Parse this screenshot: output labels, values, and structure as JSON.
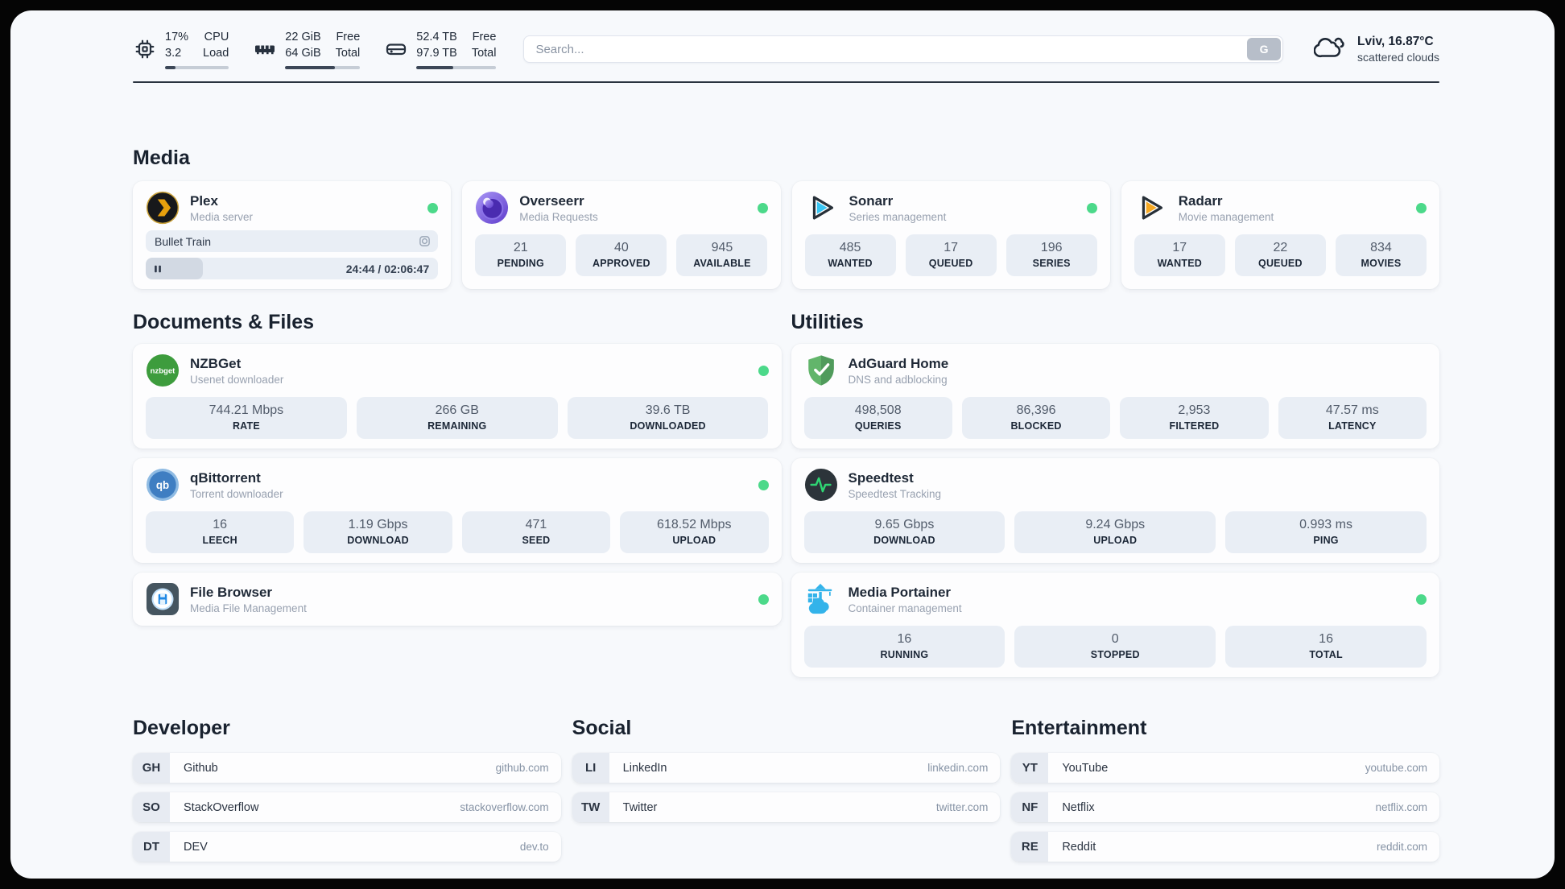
{
  "header": {
    "stats": [
      {
        "icon": "cpu-icon",
        "value_line1": "17%",
        "value_line2": "3.2",
        "label_line1": "CPU",
        "label_line2": "Load",
        "progress_pct": 17
      },
      {
        "icon": "memory-icon",
        "value_line1": "22 GiB",
        "value_line2": "64 GiB",
        "label_line1": "Free",
        "label_line2": "Total",
        "progress_pct": 66
      },
      {
        "icon": "storage-icon",
        "value_line1": "52.4 TB",
        "value_line2": "97.9 TB",
        "label_line1": "Free",
        "label_line2": "Total",
        "progress_pct": 46
      }
    ],
    "search": {
      "placeholder": "Search...",
      "button_label": "G"
    },
    "weather": {
      "location": "Lviv, 16.87°C",
      "condition": "scattered clouds"
    }
  },
  "media": {
    "heading": "Media",
    "plex": {
      "name": "Plex",
      "description": "Media server",
      "status": "online",
      "now_playing": "Bullet Train",
      "time_display": "24:44 / 02:06:47",
      "progress_pct": 19.5
    },
    "overseerr": {
      "name": "Overseerr",
      "description": "Media Requests",
      "status": "online",
      "stats": [
        {
          "value": "21",
          "label": "PENDING"
        },
        {
          "value": "40",
          "label": "APPROVED"
        },
        {
          "value": "945",
          "label": "AVAILABLE"
        }
      ]
    },
    "sonarr": {
      "name": "Sonarr",
      "description": "Series management",
      "status": "online",
      "stats": [
        {
          "value": "485",
          "label": "WANTED"
        },
        {
          "value": "17",
          "label": "QUEUED"
        },
        {
          "value": "196",
          "label": "SERIES"
        }
      ]
    },
    "radarr": {
      "name": "Radarr",
      "description": "Movie management",
      "status": "online",
      "stats": [
        {
          "value": "17",
          "label": "WANTED"
        },
        {
          "value": "22",
          "label": "QUEUED"
        },
        {
          "value": "834",
          "label": "MOVIES"
        }
      ]
    }
  },
  "documents": {
    "heading": "Documents & Files",
    "nzbget": {
      "name": "NZBGet",
      "description": "Usenet downloader",
      "status": "online",
      "stats": [
        {
          "value": "744.21 Mbps",
          "label": "RATE"
        },
        {
          "value": "266 GB",
          "label": "REMAINING"
        },
        {
          "value": "39.6 TB",
          "label": "DOWNLOADED"
        }
      ]
    },
    "qbittorrent": {
      "name": "qBittorrent",
      "description": "Torrent downloader",
      "status": "online",
      "stats": [
        {
          "value": "16",
          "label": "LEECH"
        },
        {
          "value": "1.19 Gbps",
          "label": "DOWNLOAD"
        },
        {
          "value": "471",
          "label": "SEED"
        },
        {
          "value": "618.52 Mbps",
          "label": "UPLOAD"
        }
      ]
    },
    "filebrowser": {
      "name": "File Browser",
      "description": "Media File Management",
      "status": "online"
    }
  },
  "utilities": {
    "heading": "Utilities",
    "adguard": {
      "name": "AdGuard Home",
      "description": "DNS and adblocking",
      "stats": [
        {
          "value": "498,508",
          "label": "QUERIES"
        },
        {
          "value": "86,396",
          "label": "BLOCKED"
        },
        {
          "value": "2,953",
          "label": "FILTERED"
        },
        {
          "value": "47.57 ms",
          "label": "LATENCY"
        }
      ]
    },
    "speedtest": {
      "name": "Speedtest",
      "description": "Speedtest Tracking",
      "stats": [
        {
          "value": "9.65 Gbps",
          "label": "DOWNLOAD"
        },
        {
          "value": "9.24 Gbps",
          "label": "UPLOAD"
        },
        {
          "value": "0.993 ms",
          "label": "PING"
        }
      ]
    },
    "portainer": {
      "name": "Media Portainer",
      "description": "Container management",
      "status": "online",
      "stats": [
        {
          "value": "16",
          "label": "RUNNING"
        },
        {
          "value": "0",
          "label": "STOPPED"
        },
        {
          "value": "16",
          "label": "TOTAL"
        }
      ]
    }
  },
  "links": {
    "developer": {
      "heading": "Developer",
      "items": [
        {
          "abbr": "GH",
          "name": "Github",
          "domain": "github.com"
        },
        {
          "abbr": "SO",
          "name": "StackOverflow",
          "domain": "stackoverflow.com"
        },
        {
          "abbr": "DT",
          "name": "DEV",
          "domain": "dev.to"
        }
      ]
    },
    "social": {
      "heading": "Social",
      "items": [
        {
          "abbr": "LI",
          "name": "LinkedIn",
          "domain": "linkedin.com"
        },
        {
          "abbr": "TW",
          "name": "Twitter",
          "domain": "twitter.com"
        }
      ]
    },
    "entertainment": {
      "heading": "Entertainment",
      "items": [
        {
          "abbr": "YT",
          "name": "YouTube",
          "domain": "youtube.com"
        },
        {
          "abbr": "NF",
          "name": "Netflix",
          "domain": "netflix.com"
        },
        {
          "abbr": "RE",
          "name": "Reddit",
          "domain": "reddit.com"
        }
      ]
    }
  },
  "colors": {
    "status_online": "#4cd98a",
    "progress_fill": "#3c4757",
    "page_background": "#f7f9fc"
  }
}
